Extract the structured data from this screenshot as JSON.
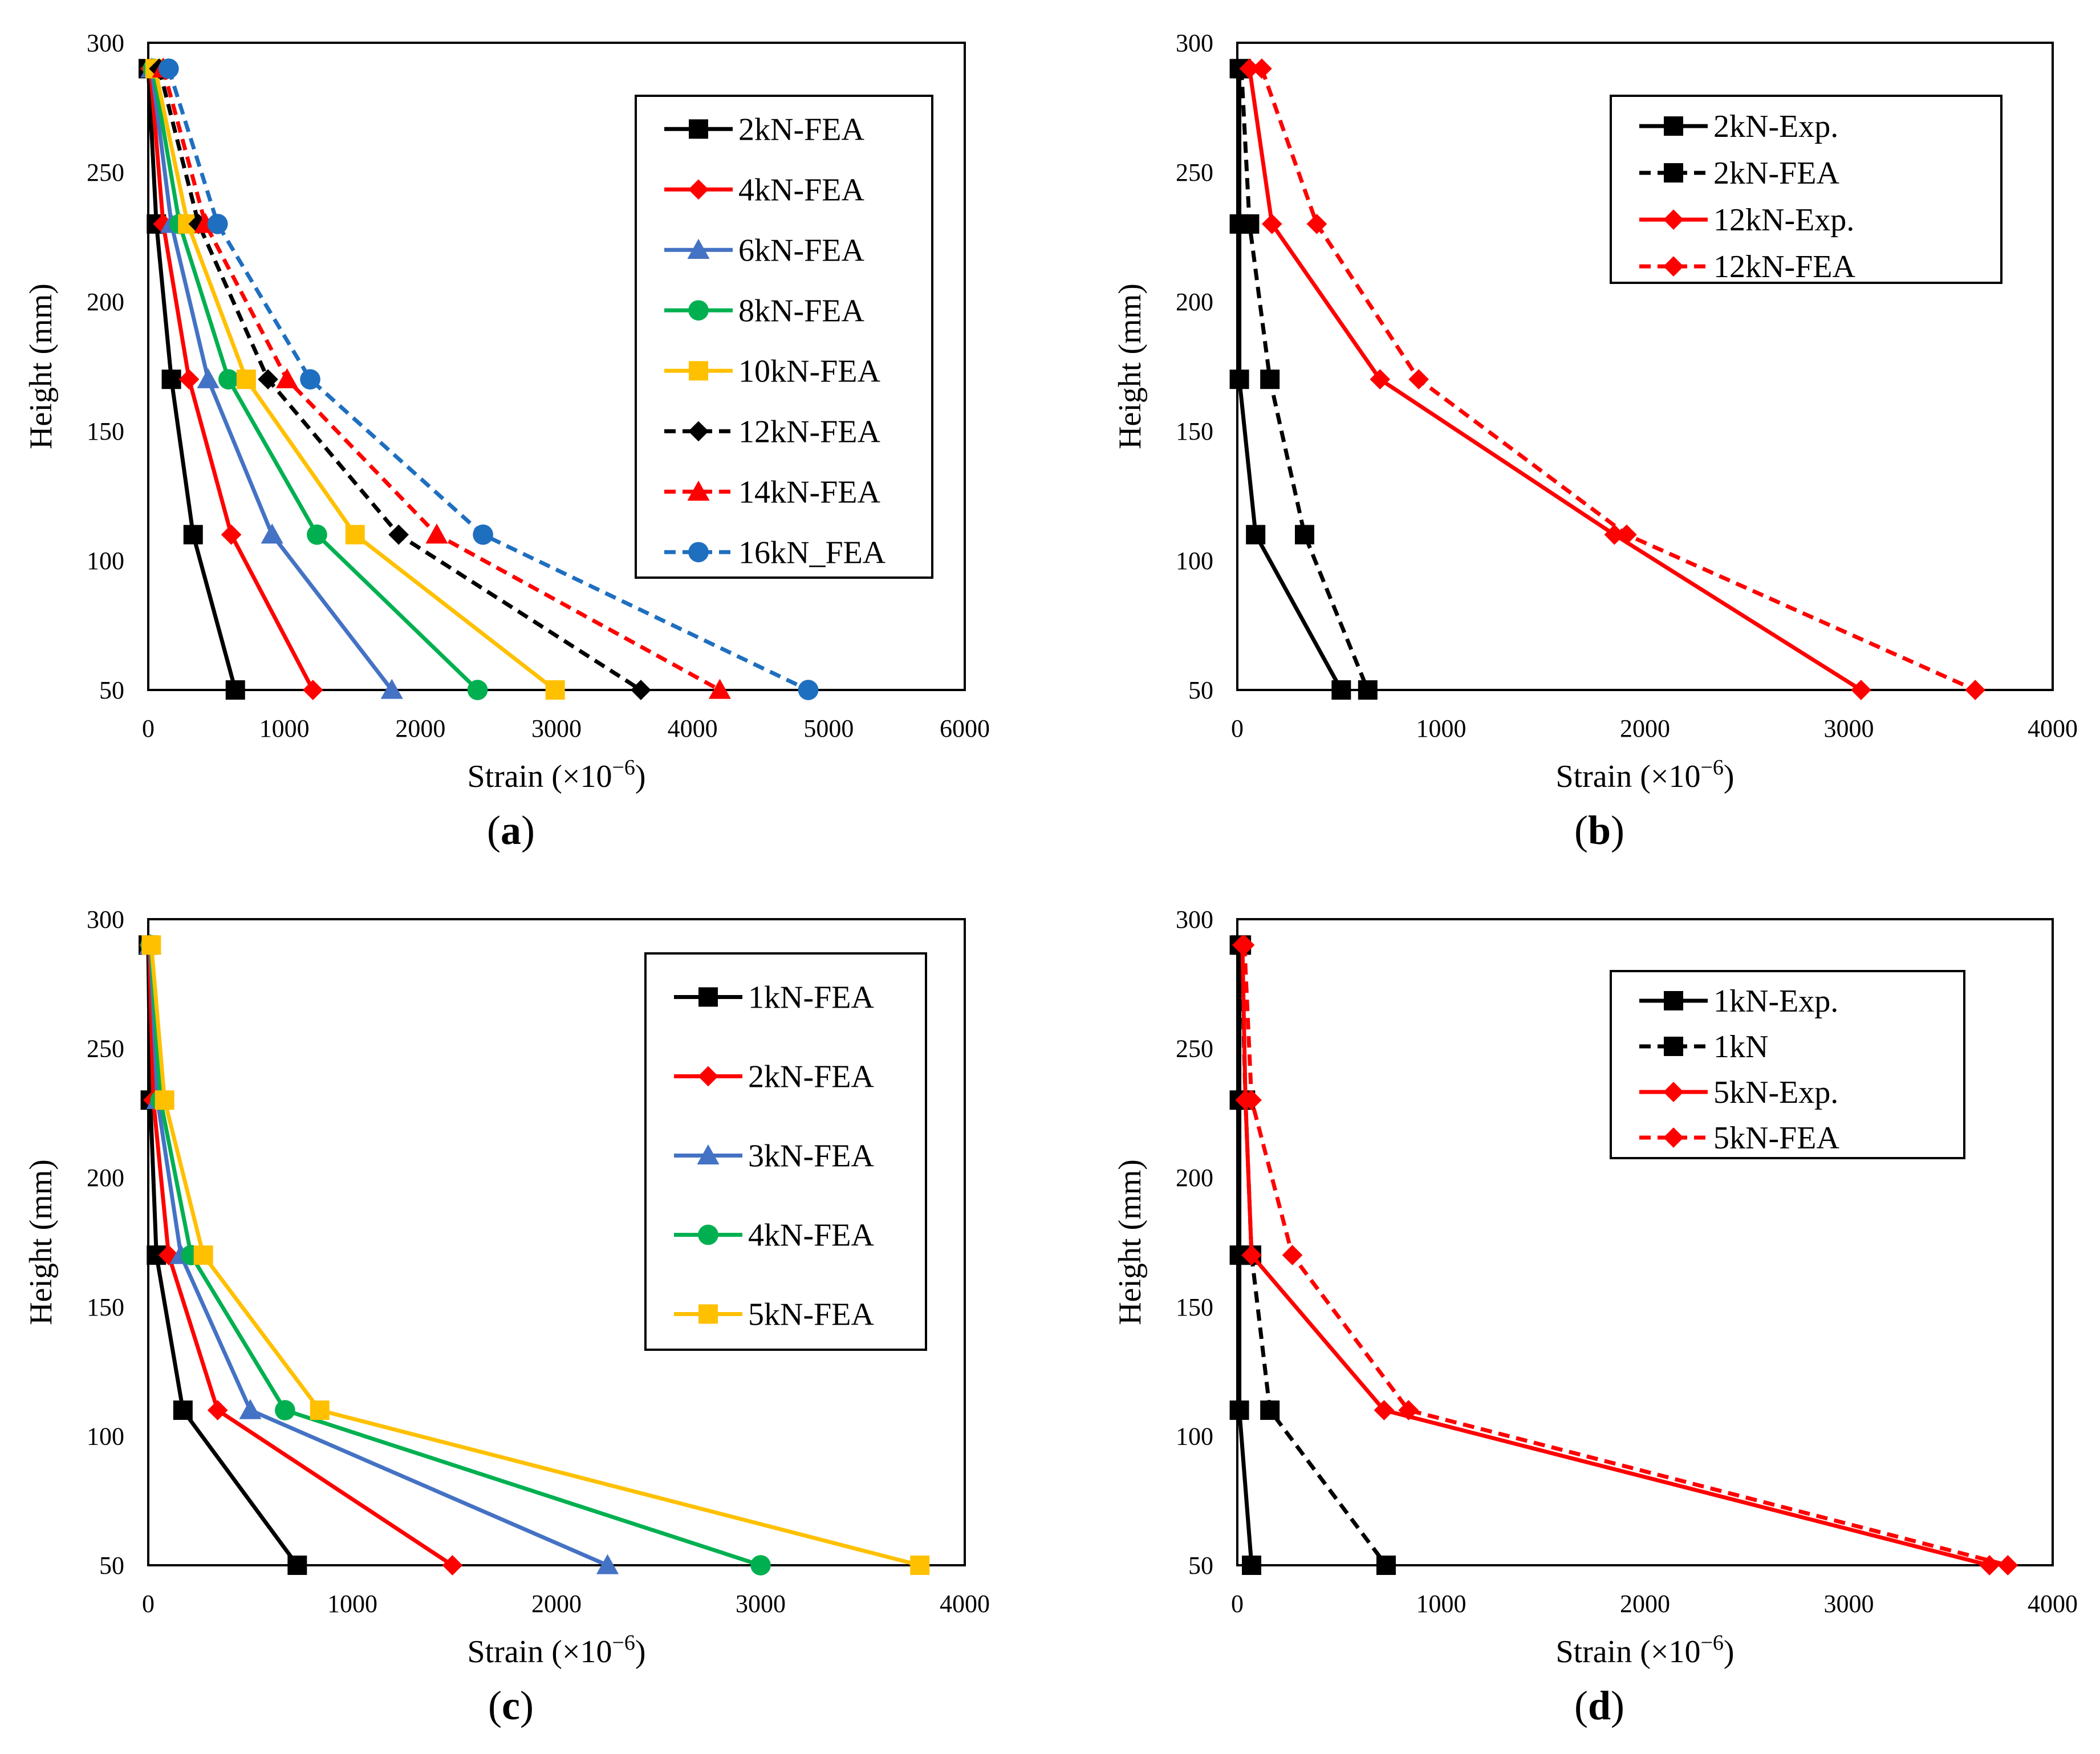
{
  "chart_data": [
    {
      "id": "a",
      "panel_label": "a",
      "type": "line",
      "xlabel": "Strain (×10",
      "xlabel_exp": "−6",
      "xlabel_tail": ")",
      "ylabel": "Height (mm)",
      "xlim": [
        0,
        6000
      ],
      "ylim": [
        50,
        300
      ],
      "xticks": [
        0,
        1000,
        2000,
        3000,
        4000,
        5000,
        6000
      ],
      "yticks": [
        50,
        100,
        150,
        200,
        250,
        300
      ],
      "grid": false,
      "legend_position": "top-right",
      "series": [
        {
          "name": "2kN-FEA",
          "color": "#000000",
          "dash": "solid",
          "marker": "square",
          "points": [
            [
              0,
              290
            ],
            [
              60,
              230
            ],
            [
              170,
              170
            ],
            [
              330,
              110
            ],
            [
              640,
              50
            ]
          ]
        },
        {
          "name": "4kN-FEA",
          "color": "#ff0000",
          "dash": "solid",
          "marker": "diamond",
          "points": [
            [
              15,
              290
            ],
            [
              110,
              230
            ],
            [
              300,
              170
            ],
            [
              610,
              110
            ],
            [
              1210,
              50
            ]
          ]
        },
        {
          "name": "6kN-FEA",
          "color": "#4472c4",
          "dash": "solid",
          "marker": "triangle",
          "points": [
            [
              25,
              290
            ],
            [
              170,
              230
            ],
            [
              440,
              170
            ],
            [
              910,
              110
            ],
            [
              1790,
              50
            ]
          ]
        },
        {
          "name": "8kN-FEA",
          "color": "#00b050",
          "dash": "solid",
          "marker": "circle",
          "points": [
            [
              35,
              290
            ],
            [
              230,
              230
            ],
            [
              590,
              170
            ],
            [
              1240,
              110
            ],
            [
              2420,
              50
            ]
          ]
        },
        {
          "name": "10kN-FEA",
          "color": "#ffc000",
          "dash": "solid",
          "marker": "square",
          "points": [
            [
              50,
              290
            ],
            [
              290,
              230
            ],
            [
              720,
              170
            ],
            [
              1520,
              110
            ],
            [
              2990,
              50
            ]
          ]
        },
        {
          "name": "12kN-FEA",
          "color": "#000000",
          "dash": "dashed",
          "marker": "diamond",
          "points": [
            [
              80,
              290
            ],
            [
              370,
              230
            ],
            [
              880,
              170
            ],
            [
              1840,
              110
            ],
            [
              3620,
              50
            ]
          ]
        },
        {
          "name": "14kN-FEA",
          "color": "#ff0000",
          "dash": "dashed",
          "marker": "triangle",
          "points": [
            [
              110,
              290
            ],
            [
              420,
              230
            ],
            [
              1020,
              170
            ],
            [
              2120,
              110
            ],
            [
              4200,
              50
            ]
          ]
        },
        {
          "name": "16kN_FEA",
          "color": "#1f6fc0",
          "dash": "dashed",
          "marker": "circle",
          "points": [
            [
              150,
              290
            ],
            [
              510,
              230
            ],
            [
              1190,
              170
            ],
            [
              2460,
              110
            ],
            [
              4850,
              50
            ]
          ]
        }
      ]
    },
    {
      "id": "b",
      "panel_label": "b",
      "type": "line",
      "xlabel": "Strain (×10",
      "xlabel_exp": "−6",
      "xlabel_tail": ")",
      "ylabel": "Height (mm)",
      "xlim": [
        0,
        4000
      ],
      "ylim": [
        50,
        300
      ],
      "xticks": [
        0,
        1000,
        2000,
        3000,
        4000
      ],
      "yticks": [
        50,
        100,
        150,
        200,
        250,
        300
      ],
      "grid": false,
      "legend_position": "top-right",
      "series": [
        {
          "name": "2kN-Exp.",
          "color": "#000000",
          "dash": "solid",
          "marker": "square",
          "points": [
            [
              10,
              290
            ],
            [
              10,
              230
            ],
            [
              10,
              170
            ],
            [
              90,
              110
            ],
            [
              510,
              50
            ]
          ]
        },
        {
          "name": "2kN-FEA",
          "color": "#000000",
          "dash": "dashed",
          "marker": "square",
          "points": [
            [
              20,
              290
            ],
            [
              60,
              230
            ],
            [
              160,
              170
            ],
            [
              330,
              110
            ],
            [
              640,
              50
            ]
          ]
        },
        {
          "name": "12kN-Exp.",
          "color": "#ff0000",
          "dash": "solid",
          "marker": "diamond",
          "points": [
            [
              60,
              290
            ],
            [
              170,
              230
            ],
            [
              700,
              170
            ],
            [
              1850,
              110
            ],
            [
              3060,
              50
            ]
          ]
        },
        {
          "name": "12kN-FEA",
          "color": "#ff0000",
          "dash": "dashed",
          "marker": "diamond",
          "points": [
            [
              120,
              290
            ],
            [
              390,
              230
            ],
            [
              890,
              170
            ],
            [
              1910,
              110
            ],
            [
              3620,
              50
            ]
          ]
        }
      ]
    },
    {
      "id": "c",
      "panel_label": "c",
      "type": "line",
      "xlabel": "Strain (×10",
      "xlabel_exp": "−6",
      "xlabel_tail": ")",
      "ylabel": "Height (mm)",
      "xlim": [
        0,
        4000
      ],
      "ylim": [
        50,
        300
      ],
      "xticks": [
        0,
        1000,
        2000,
        3000,
        4000
      ],
      "yticks": [
        50,
        100,
        150,
        200,
        250,
        300
      ],
      "grid": false,
      "legend_position": "top-right",
      "series": [
        {
          "name": "1kN-FEA",
          "color": "#000000",
          "dash": "solid",
          "marker": "square",
          "points": [
            [
              0,
              290
            ],
            [
              10,
              230
            ],
            [
              40,
              170
            ],
            [
              170,
              110
            ],
            [
              730,
              50
            ]
          ]
        },
        {
          "name": "2kN-FEA",
          "color": "#ff0000",
          "dash": "solid",
          "marker": "diamond",
          "points": [
            [
              5,
              290
            ],
            [
              25,
              230
            ],
            [
              100,
              170
            ],
            [
              340,
              110
            ],
            [
              1490,
              50
            ]
          ]
        },
        {
          "name": "3kN-FEA",
          "color": "#4472c4",
          "dash": "solid",
          "marker": "triangle",
          "points": [
            [
              10,
              290
            ],
            [
              45,
              230
            ],
            [
              160,
              170
            ],
            [
              500,
              110
            ],
            [
              2250,
              50
            ]
          ]
        },
        {
          "name": "4kN-FEA",
          "color": "#00b050",
          "dash": "solid",
          "marker": "circle",
          "points": [
            [
              12,
              290
            ],
            [
              60,
              230
            ],
            [
              210,
              170
            ],
            [
              670,
              110
            ],
            [
              3000,
              50
            ]
          ]
        },
        {
          "name": "5kN-FEA",
          "color": "#ffc000",
          "dash": "solid",
          "marker": "square",
          "points": [
            [
              15,
              290
            ],
            [
              80,
              230
            ],
            [
              270,
              170
            ],
            [
              840,
              110
            ],
            [
              3780,
              50
            ]
          ]
        }
      ]
    },
    {
      "id": "d",
      "panel_label": "d",
      "type": "line",
      "xlabel": "Strain (×10",
      "xlabel_exp": "−6",
      "xlabel_tail": ")",
      "ylabel": "Height (mm)",
      "xlim": [
        0,
        4000
      ],
      "ylim": [
        50,
        300
      ],
      "xticks": [
        0,
        1000,
        2000,
        3000,
        4000
      ],
      "yticks": [
        50,
        100,
        150,
        200,
        250,
        300
      ],
      "grid": false,
      "legend_position": "top-right",
      "series": [
        {
          "name": "1kN-Exp.",
          "color": "#000000",
          "dash": "solid",
          "marker": "square",
          "points": [
            [
              10,
              290
            ],
            [
              10,
              230
            ],
            [
              10,
              170
            ],
            [
              10,
              110
            ],
            [
              70,
              50
            ]
          ]
        },
        {
          "name": "1kN",
          "color": "#000000",
          "dash": "dashed",
          "marker": "square",
          "points": [
            [
              20,
              290
            ],
            [
              40,
              230
            ],
            [
              70,
              170
            ],
            [
              160,
              110
            ],
            [
              730,
              50
            ]
          ]
        },
        {
          "name": "5kN-Exp.",
          "color": "#ff0000",
          "dash": "solid",
          "marker": "diamond",
          "points": [
            [
              25,
              290
            ],
            [
              40,
              230
            ],
            [
              70,
              170
            ],
            [
              720,
              110
            ],
            [
              3690,
              50
            ]
          ]
        },
        {
          "name": "5kN-FEA",
          "color": "#ff0000",
          "dash": "dashed",
          "marker": "diamond",
          "points": [
            [
              35,
              290
            ],
            [
              70,
              230
            ],
            [
              270,
              170
            ],
            [
              840,
              110
            ],
            [
              3780,
              50
            ]
          ]
        }
      ]
    }
  ]
}
